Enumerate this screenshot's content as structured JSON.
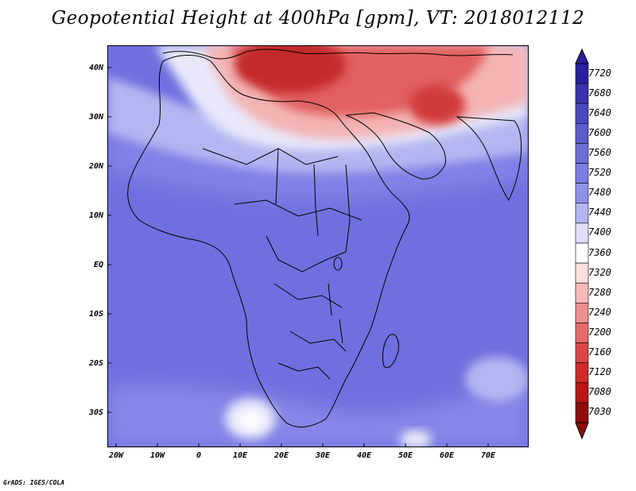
{
  "title": "Geopotential Height at 400hPa [gpm], VT: 2018012112",
  "credit": "GrADS: IGES/COLA",
  "lat_labels": [
    "40N",
    "30N",
    "20N",
    "10N",
    "EQ",
    "10S",
    "20S",
    "30S"
  ],
  "lon_labels": [
    "20W",
    "10W",
    "0",
    "10E",
    "20E",
    "30E",
    "40E",
    "50E",
    "60E",
    "70E"
  ],
  "colorbar": {
    "labels": [
      "7720",
      "7680",
      "7640",
      "7600",
      "7560",
      "7520",
      "7480",
      "7440",
      "7400",
      "7360",
      "7320",
      "7280",
      "7240",
      "7200",
      "7160",
      "7120",
      "7080",
      "7030"
    ],
    "colors": [
      "#2a1f9e",
      "#3a33ad",
      "#4a48bd",
      "#5b5dcc",
      "#6c6ed8",
      "#7a7de2",
      "#8f92ea",
      "#b4b6f1",
      "#e0e0f8",
      "#ffffff",
      "#fbe0e0",
      "#f6b8b8",
      "#ee9090",
      "#e66a6a",
      "#dc4646",
      "#d02a2a",
      "#b81616",
      "#8f0c0c"
    ]
  },
  "colors": {
    "ocean_blue": "#6f6ee0",
    "land_blue": "#7677e5",
    "light_blue": "#b4b6f1",
    "pale": "#e6e6fa",
    "white": "#ffffff",
    "pink": "#f4b8b8",
    "red": "#e25a5a",
    "dark_red": "#c42a2a"
  }
}
